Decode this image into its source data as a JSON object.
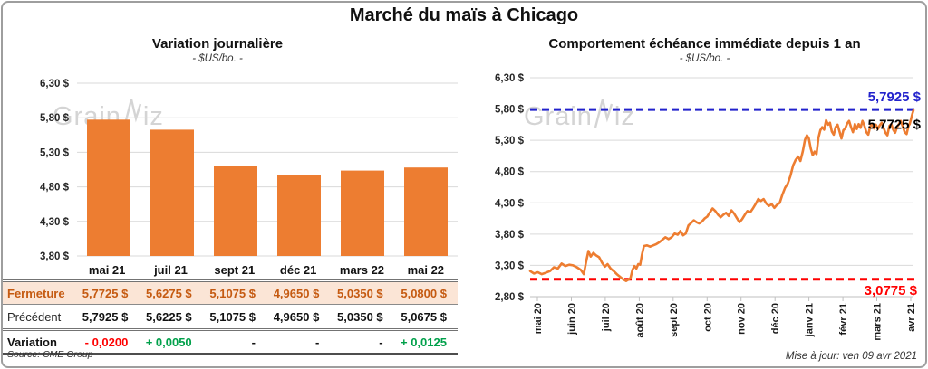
{
  "title": "Marché du maïs à Chicago",
  "source": "Source: CME Group",
  "updated": "Mise à jour: ven 09 avr 2021",
  "watermark": {
    "part1": "Grain",
    "part2": "iz"
  },
  "colors": {
    "orange": "#ED7D31",
    "blue_line": "#2222CC",
    "red_line": "#FF0000",
    "green_text": "#00A04A",
    "fermeture_text": "#C55A11",
    "fermeture_bg": "#FBE5D6",
    "gridline": "#D9D9D9",
    "axis": "#BFBFBF"
  },
  "chart_data": [
    {
      "type": "bar",
      "title": "Variation journalière",
      "subtitle": "- $US/bo. -",
      "categories": [
        "mai 21",
        "juil 21",
        "sept 21",
        "déc 21",
        "mars 22",
        "mai 22"
      ],
      "values": [
        5.7725,
        5.6275,
        5.1075,
        4.965,
        5.035,
        5.08
      ],
      "ylim": [
        3.8,
        6.3
      ],
      "grid": true,
      "bar_color": "#ED7D31",
      "y_ticks": [
        {
          "label": "6,30 $",
          "v": 6.3
        },
        {
          "label": "5,80 $",
          "v": 5.8
        },
        {
          "label": "5,30 $",
          "v": 5.3
        },
        {
          "label": "4,80 $",
          "v": 4.8
        },
        {
          "label": "4,30 $",
          "v": 4.3
        },
        {
          "label": "3,80 $",
          "v": 3.8
        }
      ]
    },
    {
      "type": "line",
      "title": "Comportement échéance immédiate depuis 1 an",
      "subtitle": "- $US/bo. -",
      "line_color": "#ED7D31",
      "ylim": [
        2.8,
        6.3
      ],
      "y_ticks": [
        {
          "label": "6,30 $",
          "v": 6.3
        },
        {
          "label": "5,80 $",
          "v": 5.8
        },
        {
          "label": "5,30 $",
          "v": 5.3
        },
        {
          "label": "4,80 $",
          "v": 4.8
        },
        {
          "label": "4,30 $",
          "v": 4.3
        },
        {
          "label": "3,80 $",
          "v": 3.8
        },
        {
          "label": "3,30 $",
          "v": 3.3
        },
        {
          "label": "2,80 $",
          "v": 2.8
        }
      ],
      "x_ticks": [
        "mai 20",
        "juin 20",
        "juil 20",
        "août 20",
        "sept 20",
        "oct 20",
        "nov 20",
        "déc 20",
        "janv 21",
        "févr 21",
        "mars 21",
        "avr 21"
      ],
      "annotations": [
        {
          "text": "5,7925 $",
          "value": 5.7925,
          "color": "#2222CC",
          "line": true,
          "dy": -9,
          "x": 1016
        },
        {
          "text": "5,7725 $",
          "value": 5.7725,
          "color": "#000000",
          "line": false,
          "dy": 20,
          "x": 1016
        },
        {
          "text": "3,0775 $",
          "value": 3.0775,
          "color": "#FF0000",
          "line": true,
          "dy": 17,
          "x": 1012
        }
      ],
      "series": [
        {
          "name": "échéance immédiate",
          "points": [
            [
              0.0,
              3.21
            ],
            [
              0.01,
              3.17
            ],
            [
              0.02,
              3.19
            ],
            [
              0.03,
              3.16
            ],
            [
              0.04,
              3.18
            ],
            [
              0.052,
              3.21
            ],
            [
              0.062,
              3.27
            ],
            [
              0.072,
              3.25
            ],
            [
              0.082,
              3.33
            ],
            [
              0.092,
              3.29
            ],
            [
              0.102,
              3.31
            ],
            [
              0.112,
              3.3
            ],
            [
              0.122,
              3.27
            ],
            [
              0.132,
              3.23
            ],
            [
              0.14,
              3.16
            ],
            [
              0.146,
              3.36
            ],
            [
              0.152,
              3.53
            ],
            [
              0.158,
              3.44
            ],
            [
              0.165,
              3.5
            ],
            [
              0.172,
              3.46
            ],
            [
              0.18,
              3.43
            ],
            [
              0.188,
              3.34
            ],
            [
              0.195,
              3.28
            ],
            [
              0.202,
              3.32
            ],
            [
              0.21,
              3.25
            ],
            [
              0.218,
              3.21
            ],
            [
              0.226,
              3.16
            ],
            [
              0.234,
              3.12
            ],
            [
              0.242,
              3.08
            ],
            [
              0.25,
              3.05
            ],
            [
              0.256,
              3.07
            ],
            [
              0.262,
              3.1
            ],
            [
              0.267,
              3.23
            ],
            [
              0.272,
              3.29
            ],
            [
              0.277,
              3.25
            ],
            [
              0.282,
              3.32
            ],
            [
              0.287,
              3.31
            ],
            [
              0.292,
              3.48
            ],
            [
              0.297,
              3.61
            ],
            [
              0.305,
              3.62
            ],
            [
              0.313,
              3.6
            ],
            [
              0.321,
              3.62
            ],
            [
              0.329,
              3.64
            ],
            [
              0.337,
              3.67
            ],
            [
              0.345,
              3.71
            ],
            [
              0.353,
              3.75
            ],
            [
              0.361,
              3.72
            ],
            [
              0.369,
              3.75
            ],
            [
              0.377,
              3.81
            ],
            [
              0.385,
              3.79
            ],
            [
              0.392,
              3.85
            ],
            [
              0.399,
              3.78
            ],
            [
              0.406,
              3.81
            ],
            [
              0.413,
              3.94
            ],
            [
              0.42,
              3.98
            ],
            [
              0.427,
              4.02
            ],
            [
              0.434,
              3.99
            ],
            [
              0.441,
              3.97
            ],
            [
              0.448,
              4.0
            ],
            [
              0.455,
              4.05
            ],
            [
              0.462,
              4.08
            ],
            [
              0.469,
              4.15
            ],
            [
              0.476,
              4.21
            ],
            [
              0.483,
              4.17
            ],
            [
              0.49,
              4.11
            ],
            [
              0.497,
              4.07
            ],
            [
              0.504,
              4.11
            ],
            [
              0.511,
              4.14
            ],
            [
              0.518,
              4.09
            ],
            [
              0.525,
              4.18
            ],
            [
              0.532,
              4.13
            ],
            [
              0.539,
              4.06
            ],
            [
              0.546,
              3.99
            ],
            [
              0.553,
              4.04
            ],
            [
              0.56,
              4.11
            ],
            [
              0.567,
              4.17
            ],
            [
              0.574,
              4.15
            ],
            [
              0.581,
              4.21
            ],
            [
              0.588,
              4.28
            ],
            [
              0.595,
              4.36
            ],
            [
              0.602,
              4.33
            ],
            [
              0.609,
              4.36
            ],
            [
              0.616,
              4.29
            ],
            [
              0.623,
              4.25
            ],
            [
              0.63,
              4.28
            ],
            [
              0.637,
              4.22
            ],
            [
              0.644,
              4.27
            ],
            [
              0.651,
              4.3
            ],
            [
              0.658,
              4.43
            ],
            [
              0.665,
              4.54
            ],
            [
              0.672,
              4.61
            ],
            [
              0.679,
              4.73
            ],
            [
              0.686,
              4.9
            ],
            [
              0.693,
              4.99
            ],
            [
              0.699,
              5.04
            ],
            [
              0.705,
              4.97
            ],
            [
              0.711,
              5.12
            ],
            [
              0.717,
              5.31
            ],
            [
              0.722,
              5.38
            ],
            [
              0.727,
              5.33
            ],
            [
              0.732,
              5.17
            ],
            [
              0.737,
              5.06
            ],
            [
              0.742,
              5.12
            ],
            [
              0.747,
              5.08
            ],
            [
              0.752,
              5.34
            ],
            [
              0.757,
              5.46
            ],
            [
              0.762,
              5.51
            ],
            [
              0.767,
              5.47
            ],
            [
              0.772,
              5.62
            ],
            [
              0.777,
              5.55
            ],
            [
              0.782,
              5.58
            ],
            [
              0.787,
              5.44
            ],
            [
              0.792,
              5.39
            ],
            [
              0.797,
              5.51
            ],
            [
              0.802,
              5.55
            ],
            [
              0.807,
              5.44
            ],
            [
              0.812,
              5.33
            ],
            [
              0.817,
              5.46
            ],
            [
              0.822,
              5.49
            ],
            [
              0.827,
              5.57
            ],
            [
              0.832,
              5.61
            ],
            [
              0.837,
              5.51
            ],
            [
              0.842,
              5.43
            ],
            [
              0.847,
              5.56
            ],
            [
              0.852,
              5.48
            ],
            [
              0.857,
              5.56
            ],
            [
              0.862,
              5.5
            ],
            [
              0.867,
              5.61
            ],
            [
              0.872,
              5.53
            ],
            [
              0.877,
              5.43
            ],
            [
              0.882,
              5.39
            ],
            [
              0.887,
              5.52
            ],
            [
              0.892,
              5.56
            ],
            [
              0.897,
              5.49
            ],
            [
              0.902,
              5.55
            ],
            [
              0.907,
              5.48
            ],
            [
              0.912,
              5.54
            ],
            [
              0.917,
              5.58
            ],
            [
              0.922,
              5.5
            ],
            [
              0.927,
              5.42
            ],
            [
              0.932,
              5.38
            ],
            [
              0.937,
              5.53
            ],
            [
              0.942,
              5.56
            ],
            [
              0.947,
              5.47
            ],
            [
              0.952,
              5.42
            ],
            [
              0.957,
              5.51
            ],
            [
              0.962,
              5.56
            ],
            [
              0.967,
              5.61
            ],
            [
              0.972,
              5.52
            ],
            [
              0.977,
              5.43
            ],
            [
              0.982,
              5.4
            ],
            [
              0.987,
              5.53
            ],
            [
              0.99,
              5.56
            ],
            [
              0.994,
              5.65
            ],
            [
              0.997,
              5.72
            ],
            [
              1.0,
              5.78
            ]
          ]
        }
      ]
    },
    {
      "type": "table",
      "months": [
        "mai 21",
        "juil 21",
        "sept 21",
        "déc 21",
        "mars 22",
        "mai 22"
      ],
      "rows": [
        {
          "label": "Fermeture",
          "values": [
            "5,7725  $",
            "5,6275  $",
            "5,1075  $",
            "4,9650  $",
            "5,0350  $",
            "5,0800  $"
          ]
        },
        {
          "label": "Précédent",
          "values": [
            "5,7925  $",
            "5,6225  $",
            "5,1075  $",
            "4,9650  $",
            "5,0350  $",
            "5,0675  $"
          ]
        },
        {
          "label": "Variation",
          "values": [
            "- 0,0200",
            "+ 0,0050",
            "-",
            "-",
            "-",
            "+ 0,0125"
          ],
          "value_colors": [
            "#FF0000",
            "#00A04A",
            "#111111",
            "#111111",
            "#111111",
            "#00A04A"
          ]
        }
      ]
    }
  ]
}
